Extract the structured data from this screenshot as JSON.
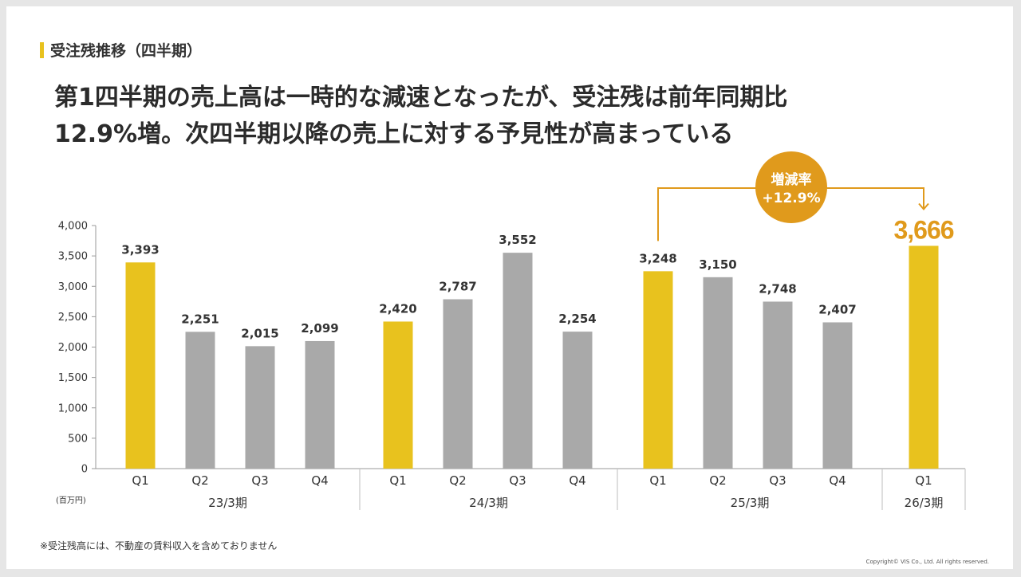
{
  "section_title": "受注残推移（四半期）",
  "headline": {
    "line1": "第1四半期の売上高は一時的な減速となったが、受注残は前年同期比",
    "line2": "12.9%増。次四半期以降の売上に対する予見性が高まっている"
  },
  "footnote": "※受注残高には、不動産の賃料収入を含めておりません",
  "copyright": "Copyright© VIS Co., Ltd. All rights reserved.",
  "colors": {
    "highlight": "#e8c21e",
    "normal": "#a9a9a9",
    "accent": "#e09a1c"
  },
  "chart_data": {
    "type": "bar",
    "unit_label": "(百万円)",
    "ylim": [
      0,
      4000
    ],
    "yticks": [
      0,
      500,
      1000,
      1500,
      2000,
      2500,
      3000,
      3500,
      4000
    ],
    "ytick_labels": [
      "0",
      "500",
      "1,000",
      "1,500",
      "2,000",
      "2,500",
      "3,000",
      "3,500",
      "4,000"
    ],
    "grid": false,
    "groups": [
      {
        "period": "23/3期",
        "bars": [
          {
            "quarter": "Q1",
            "value": 3393,
            "label": "3,393",
            "highlight": true
          },
          {
            "quarter": "Q2",
            "value": 2251,
            "label": "2,251",
            "highlight": false
          },
          {
            "quarter": "Q3",
            "value": 2015,
            "label": "2,015",
            "highlight": false
          },
          {
            "quarter": "Q4",
            "value": 2099,
            "label": "2,099",
            "highlight": false
          }
        ]
      },
      {
        "period": "24/3期",
        "bars": [
          {
            "quarter": "Q1",
            "value": 2420,
            "label": "2,420",
            "highlight": true
          },
          {
            "quarter": "Q2",
            "value": 2787,
            "label": "2,787",
            "highlight": false
          },
          {
            "quarter": "Q3",
            "value": 3552,
            "label": "3,552",
            "highlight": false
          },
          {
            "quarter": "Q4",
            "value": 2254,
            "label": "2,254",
            "highlight": false
          }
        ]
      },
      {
        "period": "25/3期",
        "bars": [
          {
            "quarter": "Q1",
            "value": 3248,
            "label": "3,248",
            "highlight": true
          },
          {
            "quarter": "Q2",
            "value": 3150,
            "label": "3,150",
            "highlight": false
          },
          {
            "quarter": "Q3",
            "value": 2748,
            "label": "2,748",
            "highlight": false
          },
          {
            "quarter": "Q4",
            "value": 2407,
            "label": "2,407",
            "highlight": false
          }
        ]
      },
      {
        "period": "26/3期",
        "bars": [
          {
            "quarter": "Q1",
            "value": 3666,
            "label": "3,666",
            "highlight": true,
            "emphasis": true
          }
        ]
      }
    ],
    "annotation": {
      "title": "増減率",
      "value": "+12.9%"
    }
  }
}
